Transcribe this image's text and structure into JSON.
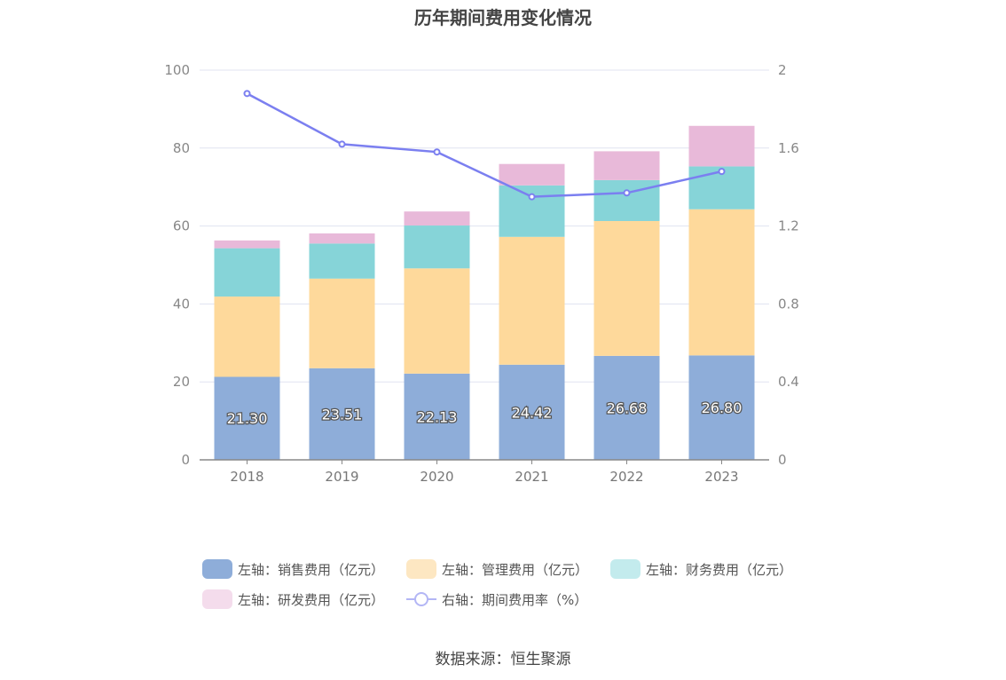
{
  "title": "历年期间费用变化情况",
  "source": "数据来源：恒生聚源",
  "chart_data": {
    "type": "bar",
    "stacked": true,
    "categories": [
      "2018",
      "2019",
      "2020",
      "2021",
      "2022",
      "2023"
    ],
    "left_axis": {
      "min": 0,
      "max": 100,
      "ticks": [
        "0",
        "20",
        "40",
        "60",
        "80",
        "100"
      ]
    },
    "right_axis": {
      "min": 0,
      "max": 2,
      "ticks": [
        "0",
        "0.4",
        "0.8",
        "1.2",
        "1.6",
        "2"
      ]
    },
    "series": [
      {
        "name": "左轴：销售费用（亿元）",
        "type": "bar",
        "axis": "left",
        "color": "#8eadd9",
        "values": [
          21.3,
          23.51,
          22.13,
          24.42,
          26.68,
          26.8
        ],
        "labels": [
          "21.30",
          "23.51",
          "22.13",
          "24.42",
          "26.68",
          "26.80"
        ]
      },
      {
        "name": "左轴：管理费用（亿元）",
        "type": "bar",
        "axis": "left",
        "color": "#fed99b",
        "values": [
          20.6,
          23.0,
          27.0,
          32.8,
          34.6,
          37.5
        ]
      },
      {
        "name": "左轴：财务费用（亿元）",
        "type": "bar",
        "axis": "left",
        "color": "#86d4d8",
        "values": [
          12.4,
          9.0,
          11.0,
          13.2,
          10.5,
          11.0
        ]
      },
      {
        "name": "左轴：研发费用（亿元）",
        "type": "bar",
        "axis": "left",
        "color": "#e8b9d9",
        "values": [
          2.0,
          2.6,
          3.6,
          5.5,
          7.4,
          10.4
        ]
      },
      {
        "name": "右轴：期间费用率（%）",
        "type": "line",
        "axis": "right",
        "color": "#7b7ff0",
        "values": [
          1.88,
          1.62,
          1.58,
          1.35,
          1.37,
          1.48
        ]
      }
    ],
    "legend_position": "bottom",
    "grid": true
  },
  "legend": {
    "items": [
      {
        "label": "左轴：销售费用（亿元）",
        "color": "#8eadd9"
      },
      {
        "label": "左轴：管理费用（亿元）",
        "color": "#fde7c2"
      },
      {
        "label": "左轴：财务费用（亿元）",
        "color": "#c3ebed"
      },
      {
        "label": "左轴：研发费用（亿元）",
        "color": "#f4dcec"
      },
      {
        "label": "右轴：期间费用率（%）",
        "color": "#b3b6f5"
      }
    ]
  }
}
